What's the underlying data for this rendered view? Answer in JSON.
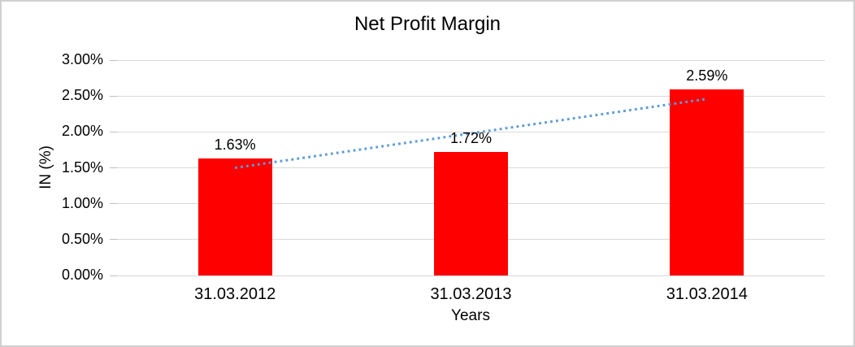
{
  "frame": {
    "background": "#ffffff",
    "border_color": "#d0d0d0"
  },
  "chart_data": {
    "type": "bar",
    "title": "Net Profit Margin",
    "xlabel": "Years",
    "ylabel": "IN (%)",
    "categories": [
      "31.03.2012",
      "31.03.2013",
      "31.03.2014"
    ],
    "series": [
      {
        "name": "Net Profit Margin",
        "values": [
          1.63,
          1.72,
          2.59
        ],
        "color": "#ff0000"
      }
    ],
    "data_labels": [
      "1.63%",
      "1.72%",
      "2.59%"
    ],
    "y_ticks": [
      {
        "value": 0.0,
        "label": "0.00%"
      },
      {
        "value": 0.5,
        "label": "0.50%"
      },
      {
        "value": 1.0,
        "label": "1.00%"
      },
      {
        "value": 1.5,
        "label": "1.50%"
      },
      {
        "value": 2.0,
        "label": "2.00%"
      },
      {
        "value": 2.5,
        "label": "2.50%"
      },
      {
        "value": 3.0,
        "label": "3.00%"
      }
    ],
    "ylim": [
      0,
      3
    ],
    "grid": "horizontal",
    "gridline_color": "#d9d9d9",
    "legend": "none",
    "trendline": {
      "type": "linear",
      "style": "dotted",
      "color": "#5b9bd5",
      "start_category_index": 0,
      "end_category_index": 2,
      "start_value": 1.5,
      "end_value": 2.46
    }
  }
}
